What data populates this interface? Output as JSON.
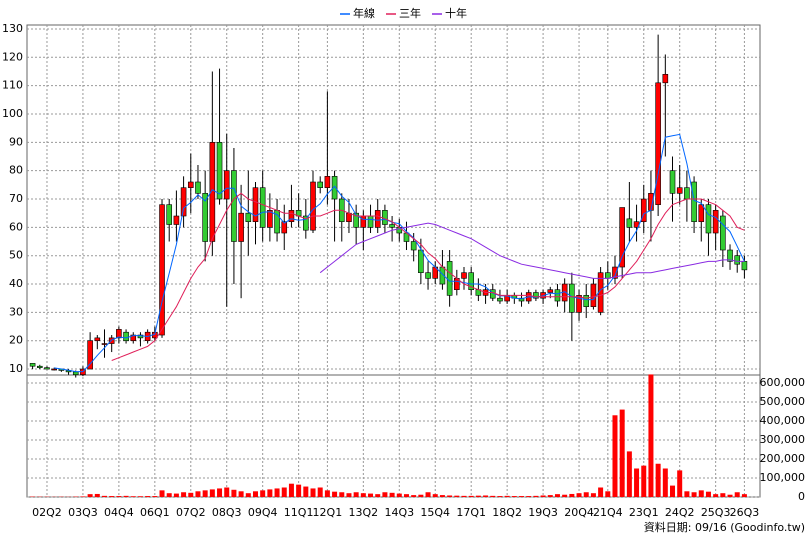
{
  "chart_data": {
    "type": "candlestick",
    "legend": "top",
    "grid": true,
    "categories": [
      null,
      null,
      "02Q2",
      null,
      null,
      null,
      null,
      "03Q3",
      null,
      null,
      null,
      null,
      "04Q4",
      null,
      null,
      null,
      null,
      "06Q1",
      null,
      null,
      null,
      null,
      "07Q2",
      null,
      null,
      null,
      null,
      "08Q3",
      null,
      null,
      null,
      null,
      "09Q4",
      null,
      null,
      null,
      null,
      "11Q1",
      null,
      null,
      null,
      "12Q1",
      null,
      null,
      null,
      null,
      "13Q2",
      null,
      null,
      null,
      null,
      "14Q3",
      null,
      null,
      null,
      null,
      "15Q4",
      null,
      null,
      null,
      null,
      "17Q1",
      null,
      null,
      null,
      null,
      "18Q2",
      null,
      null,
      null,
      null,
      "19Q3",
      null,
      null,
      null,
      null,
      "20Q4",
      null,
      null,
      null,
      "21Q4",
      null,
      null,
      null,
      null,
      "23Q1",
      null,
      null,
      null,
      null,
      "24Q2",
      null,
      null,
      null,
      null,
      "25Q3",
      null,
      null,
      null,
      "26Q3"
    ],
    "open": [
      12,
      11,
      10.5,
      10,
      10,
      9.5,
      9,
      8,
      10,
      20,
      19,
      19,
      21,
      23,
      20,
      22,
      20,
      21,
      22,
      68,
      61,
      64,
      74,
      76,
      72,
      55,
      90,
      70,
      80,
      55,
      65,
      62,
      74,
      60,
      66,
      58,
      62,
      66,
      64,
      59,
      76,
      74,
      78,
      70,
      62,
      65,
      60,
      64,
      60,
      66,
      61,
      60,
      58,
      55,
      52,
      44,
      42,
      46,
      48,
      38,
      42,
      44,
      38,
      36,
      38,
      35,
      34,
      36,
      35,
      34,
      37,
      35,
      37,
      38,
      34,
      40,
      30,
      36,
      32,
      30,
      44,
      42,
      46,
      63,
      60,
      62,
      66,
      68,
      111,
      80,
      72,
      74,
      76,
      62,
      68,
      58,
      64,
      52,
      50,
      48
    ],
    "high": [
      12,
      11.5,
      11,
      10.5,
      10,
      10,
      9.5,
      11,
      23,
      22,
      24,
      22,
      25,
      24,
      23,
      23,
      24,
      25,
      70,
      70,
      73,
      78,
      86,
      82,
      80,
      115,
      116,
      93,
      88,
      75,
      80,
      76,
      80,
      72,
      70,
      68,
      75,
      72,
      70,
      80,
      78,
      108,
      80,
      72,
      70,
      68,
      66,
      68,
      70,
      68,
      64,
      63,
      62,
      58,
      56,
      48,
      48,
      52,
      52,
      45,
      46,
      46,
      42,
      40,
      40,
      38,
      38,
      37,
      37,
      38,
      38,
      38,
      39,
      40,
      42,
      44,
      38,
      40,
      42,
      46,
      48,
      50,
      67,
      76,
      68,
      75,
      80,
      128,
      121,
      85,
      82,
      80,
      78,
      70,
      70,
      68,
      66,
      54,
      52,
      50
    ],
    "low": [
      10,
      10,
      10,
      9.5,
      9,
      8,
      7,
      7.5,
      10,
      17,
      14,
      16,
      19,
      19,
      19,
      18,
      19,
      20,
      21,
      55,
      55,
      60,
      65,
      70,
      48,
      50,
      68,
      32,
      40,
      35,
      50,
      54,
      55,
      55,
      55,
      52,
      60,
      60,
      56,
      58,
      72,
      68,
      55,
      55,
      58,
      54,
      52,
      58,
      58,
      58,
      55,
      55,
      52,
      48,
      40,
      38,
      40,
      38,
      32,
      36,
      38,
      36,
      34,
      33,
      34,
      33,
      33,
      33,
      32,
      33,
      34,
      33,
      35,
      32,
      30,
      20,
      27,
      28,
      31,
      29,
      38,
      40,
      42,
      55,
      55,
      58,
      55,
      64,
      85,
      62,
      68,
      62,
      58,
      55,
      50,
      52,
      46,
      45,
      44,
      42
    ],
    "close": [
      11,
      10.5,
      10,
      10,
      9.5,
      9,
      8,
      10,
      20,
      21,
      19,
      21,
      24,
      20,
      22,
      21,
      23,
      23,
      68,
      61,
      64,
      74,
      76,
      72,
      55,
      90,
      70,
      80,
      55,
      65,
      62,
      74,
      60,
      66,
      58,
      62,
      66,
      64,
      59,
      76,
      74,
      78,
      70,
      62,
      65,
      60,
      64,
      60,
      66,
      61,
      60,
      58,
      55,
      52,
      44,
      42,
      46,
      40,
      36,
      42,
      44,
      38,
      36,
      38,
      35,
      34,
      36,
      35,
      34,
      37,
      35,
      37,
      38,
      34,
      40,
      30,
      36,
      32,
      40,
      44,
      42,
      46,
      67,
      60,
      62,
      70,
      72,
      111,
      114,
      72,
      74,
      70,
      62,
      68,
      58,
      66,
      52,
      48,
      47,
      45
    ],
    "up_color": "#ff0000",
    "down_color": "#33cc33",
    "lines": [
      {
        "name": "年線",
        "color": "#0066ff",
        "values": [
          null,
          null,
          null,
          10.4,
          10,
          9.6,
          9.1,
          9.1,
          11.8,
          14.8,
          17.5,
          20.3,
          21.3,
          21,
          21.8,
          21.8,
          21.5,
          22.3,
          33.8,
          43.8,
          54,
          66.8,
          68.8,
          71.5,
          69.3,
          73.3,
          71.8,
          73.8,
          73.8,
          67.5,
          65.5,
          64,
          65.3,
          65.5,
          64.5,
          61.5,
          63,
          62.5,
          62.8,
          66.3,
          68.3,
          71.8,
          74.5,
          71,
          68.8,
          64.3,
          62.8,
          62.8,
          62.5,
          62.8,
          61.8,
          61.3,
          58.5,
          56.3,
          52.3,
          48.3,
          46,
          43.5,
          41,
          41,
          40.5,
          40,
          40,
          39,
          36.8,
          35.8,
          35.8,
          35,
          34.8,
          35.5,
          35.3,
          35.8,
          36.8,
          36.5,
          37.3,
          35.5,
          35,
          34.5,
          34.5,
          38,
          39.5,
          43,
          49.8,
          54.8,
          58.8,
          64.8,
          66,
          78.8,
          91.8,
          92.3,
          92.8,
          82.5,
          69.5,
          68.5,
          64.5,
          63.5,
          61,
          58.5,
          53.3,
          48
        ]
      },
      {
        "name": "三年",
        "color": "#e0205a",
        "values": [
          null,
          null,
          null,
          null,
          null,
          null,
          null,
          null,
          null,
          null,
          null,
          13,
          14,
          15,
          16,
          17,
          18,
          20,
          24,
          28,
          32,
          37,
          42,
          46,
          49,
          56,
          61,
          66,
          70,
          72,
          70,
          69,
          68,
          67,
          66,
          65,
          65,
          64,
          63,
          64,
          64,
          65,
          66,
          66,
          65,
          64,
          64,
          64,
          64,
          63,
          62,
          60,
          58,
          56,
          54,
          51,
          49,
          46,
          44,
          42,
          40,
          39,
          38,
          37,
          37,
          36,
          36,
          36,
          36,
          36,
          35.5,
          35.5,
          35.5,
          35.5,
          35.5,
          35.5,
          35.5,
          35,
          35.5,
          36,
          37,
          39,
          42,
          45,
          48,
          52,
          56,
          61,
          65,
          68,
          69,
          70,
          70,
          70,
          69,
          68,
          66,
          64,
          60,
          59
        ]
      },
      {
        "name": "十年",
        "color": "#8a2be2",
        "values": [
          null,
          null,
          null,
          null,
          null,
          null,
          null,
          null,
          null,
          null,
          null,
          null,
          null,
          null,
          null,
          null,
          null,
          null,
          null,
          null,
          null,
          null,
          null,
          null,
          null,
          null,
          null,
          null,
          null,
          null,
          null,
          null,
          null,
          null,
          null,
          null,
          null,
          null,
          null,
          null,
          44,
          46,
          48,
          50,
          52,
          54,
          55,
          56,
          57,
          58,
          59,
          59.5,
          60,
          60.5,
          61,
          61.5,
          61,
          60,
          59,
          58,
          57,
          56,
          54.5,
          53,
          51.5,
          50,
          49,
          48,
          47,
          46.5,
          46,
          45.5,
          45,
          44.5,
          44,
          43.5,
          43,
          42.5,
          42,
          42,
          42,
          42.5,
          43,
          43.5,
          44,
          44,
          44,
          44.5,
          45,
          45.5,
          46,
          46.5,
          47,
          47.5,
          48,
          48,
          48.5,
          48.5,
          48,
          48
        ]
      }
    ],
    "ylim": [
      7.9,
      131.4
    ],
    "yticks": [
      10,
      20,
      30,
      40,
      50,
      60,
      70,
      80,
      90,
      100,
      110,
      120,
      130
    ],
    "volume": {
      "color": "#ff0000",
      "values": [
        2000,
        1500,
        1500,
        1000,
        1500,
        1000,
        2000,
        3000,
        15000,
        16000,
        6000,
        5000,
        5000,
        6000,
        4000,
        4000,
        5000,
        5000,
        35000,
        20000,
        18000,
        25000,
        22000,
        30000,
        35000,
        40000,
        45000,
        50000,
        38000,
        30000,
        20000,
        30000,
        35000,
        40000,
        45000,
        50000,
        70000,
        65000,
        55000,
        45000,
        50000,
        35000,
        28000,
        25000,
        20000,
        25000,
        20000,
        18000,
        15000,
        25000,
        22000,
        18000,
        15000,
        10000,
        12000,
        25000,
        15000,
        10000,
        8000,
        7000,
        6000,
        6000,
        7000,
        8000,
        6000,
        5000,
        6000,
        5000,
        5000,
        5000,
        6000,
        8000,
        10000,
        15000,
        12000,
        16000,
        20000,
        25000,
        20000,
        50000,
        30000,
        430000,
        460000,
        240000,
        150000,
        165000,
        645000,
        175000,
        150000,
        60000,
        140000,
        30000,
        25000,
        35000,
        28000,
        15000,
        20000,
        12000,
        25000,
        15000
      ]
    },
    "y2lim": [
      0,
      642000
    ],
    "y2ticks": [
      0,
      {
        "value": 100000,
        "label": "100,000"
      },
      {
        "value": 200000,
        "label": "200,000"
      },
      {
        "value": 300000,
        "label": "300,000"
      },
      {
        "value": 400000,
        "label": "400,000"
      },
      {
        "value": 500000,
        "label": "500,000"
      },
      {
        "value": 600000,
        "label": "600,000"
      }
    ],
    "footer": "資料日期: 09/16 (Goodinfo.tw)"
  }
}
